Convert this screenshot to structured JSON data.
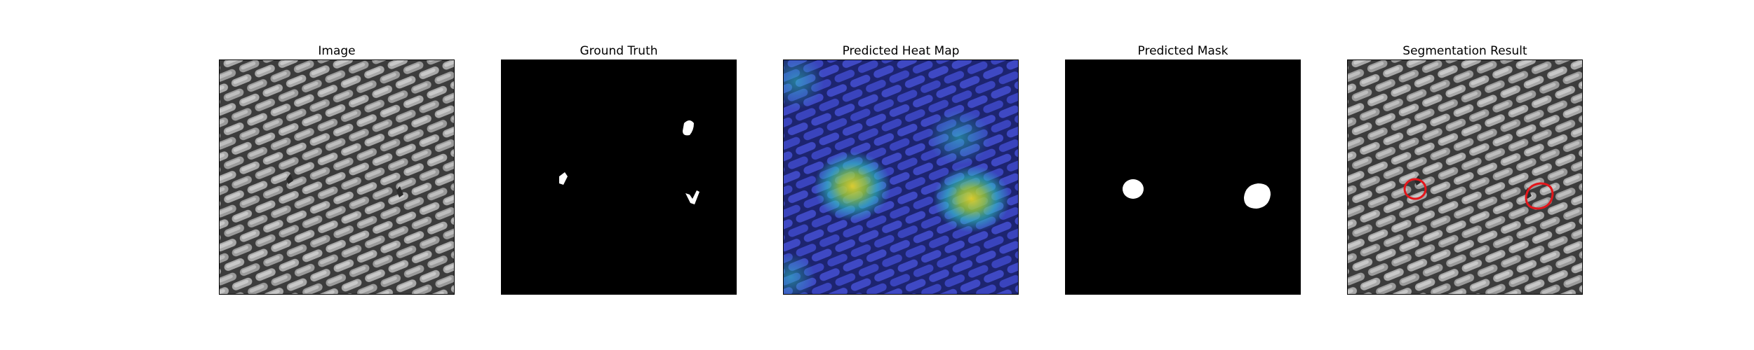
{
  "figure": {
    "panels": [
      {
        "title": "Image"
      },
      {
        "title": "Ground Truth"
      },
      {
        "title": "Predicted Heat Map"
      },
      {
        "title": "Predicted Mask"
      },
      {
        "title": "Segmentation Result"
      }
    ]
  },
  "colors": {
    "background": "#ffffff",
    "mask_background": "#000000",
    "mask_foreground": "#ffffff",
    "segmentation_contour": "#e3161b",
    "heatmap_low": "#2f3bb8",
    "heatmap_mid": "#2fd2c6",
    "heatmap_high": "#e3d22a"
  }
}
